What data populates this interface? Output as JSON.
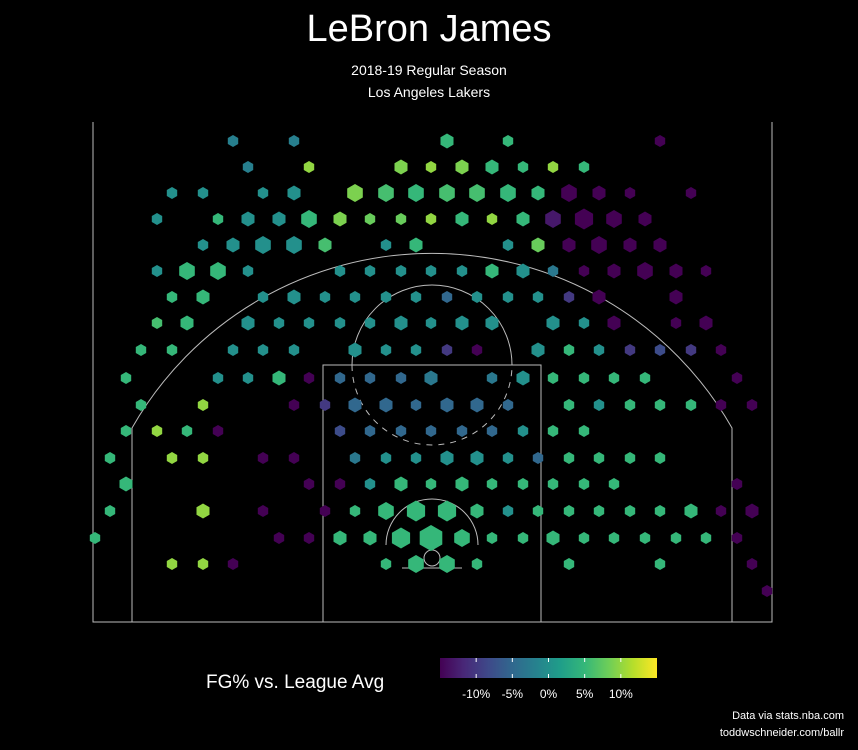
{
  "header": {
    "title": "LeBron James",
    "subtitle_line1": "2018-19 Regular Season",
    "subtitle_line2": "Los Angeles Lakers"
  },
  "footer": {
    "credit_line1": "Data via stats.nba.com",
    "credit_line2": "toddwschneider.com/ballr"
  },
  "chart_data": {
    "type": "hexbin",
    "legend": {
      "title": "FG% vs. League Avg",
      "ticks": [
        "-10%",
        "-5%",
        "0%",
        "5%",
        "10%"
      ],
      "tick_values": [
        -10,
        -5,
        0,
        5,
        10
      ],
      "range": [
        -15,
        15
      ],
      "colormap": "viridis",
      "placement": "bottom"
    },
    "colors": {
      "background": "#000000",
      "court_lines": "#bbbbbb",
      "viridis": [
        "#440154",
        "#482878",
        "#3e4989",
        "#31688e",
        "#26828e",
        "#1f9e89",
        "#35b779",
        "#6ece58",
        "#b5de2b",
        "#fde725"
      ]
    },
    "hexes": [
      [
        233,
        141,
        2,
        -2
      ],
      [
        294,
        141,
        2,
        -2
      ],
      [
        447,
        141,
        3,
        5
      ],
      [
        508,
        141,
        2,
        5
      ],
      [
        660,
        141,
        2,
        -15
      ],
      [
        248,
        167,
        2,
        -2
      ],
      [
        309,
        167,
        2,
        10
      ],
      [
        401,
        167,
        3,
        9
      ],
      [
        431,
        167,
        2,
        10
      ],
      [
        462,
        167,
        3,
        9
      ],
      [
        492,
        167,
        3,
        5
      ],
      [
        523,
        167,
        2,
        5
      ],
      [
        553,
        167,
        2,
        10
      ],
      [
        584,
        167,
        2,
        5
      ],
      [
        172,
        193,
        2,
        0
      ],
      [
        203,
        193,
        2,
        0
      ],
      [
        263,
        193,
        2,
        0
      ],
      [
        294,
        193,
        3,
        0
      ],
      [
        355,
        193,
        4,
        9
      ],
      [
        386,
        193,
        4,
        6
      ],
      [
        416,
        193,
        4,
        5
      ],
      [
        447,
        193,
        4,
        6
      ],
      [
        477,
        193,
        4,
        6
      ],
      [
        508,
        193,
        4,
        5
      ],
      [
        538,
        193,
        3,
        5
      ],
      [
        569,
        193,
        4,
        -15
      ],
      [
        599,
        193,
        3,
        -15
      ],
      [
        630,
        193,
        2,
        -15
      ],
      [
        691,
        193,
        2,
        -15
      ],
      [
        157,
        219,
        2,
        0
      ],
      [
        218,
        219,
        2,
        5
      ],
      [
        248,
        219,
        3,
        0
      ],
      [
        279,
        219,
        3,
        0
      ],
      [
        309,
        219,
        4,
        5
      ],
      [
        340,
        219,
        3,
        9
      ],
      [
        370,
        219,
        2,
        8
      ],
      [
        401,
        219,
        2,
        8
      ],
      [
        431,
        219,
        2,
        10
      ],
      [
        462,
        219,
        3,
        5
      ],
      [
        492,
        219,
        2,
        10
      ],
      [
        523,
        219,
        3,
        5
      ],
      [
        553,
        219,
        4,
        -13
      ],
      [
        584,
        219,
        5,
        -15
      ],
      [
        614,
        219,
        4,
        -15
      ],
      [
        645,
        219,
        3,
        -15
      ],
      [
        203,
        245,
        2,
        0
      ],
      [
        233,
        245,
        3,
        0
      ],
      [
        263,
        245,
        4,
        0
      ],
      [
        294,
        245,
        4,
        0
      ],
      [
        325,
        245,
        3,
        6
      ],
      [
        386,
        245,
        2,
        0
      ],
      [
        416,
        245,
        3,
        5
      ],
      [
        508,
        245,
        2,
        0
      ],
      [
        538,
        245,
        3,
        8
      ],
      [
        569,
        245,
        3,
        -15
      ],
      [
        599,
        245,
        4,
        -15
      ],
      [
        630,
        245,
        3,
        -15
      ],
      [
        660,
        245,
        3,
        -15
      ],
      [
        157,
        271,
        2,
        0
      ],
      [
        187,
        271,
        4,
        5
      ],
      [
        218,
        271,
        4,
        5
      ],
      [
        248,
        271,
        2,
        0
      ],
      [
        340,
        271,
        2,
        0
      ],
      [
        370,
        271,
        2,
        0
      ],
      [
        401,
        271,
        2,
        0
      ],
      [
        431,
        271,
        2,
        0
      ],
      [
        462,
        271,
        2,
        0
      ],
      [
        492,
        271,
        3,
        5
      ],
      [
        523,
        271,
        3,
        0
      ],
      [
        553,
        271,
        2,
        -3
      ],
      [
        584,
        271,
        2,
        -15
      ],
      [
        614,
        271,
        3,
        -15
      ],
      [
        645,
        271,
        4,
        -15
      ],
      [
        676,
        271,
        3,
        -15
      ],
      [
        706,
        271,
        2,
        -15
      ],
      [
        172,
        297,
        2,
        5
      ],
      [
        203,
        297,
        3,
        5
      ],
      [
        263,
        297,
        2,
        0
      ],
      [
        294,
        297,
        3,
        0
      ],
      [
        325,
        297,
        2,
        0
      ],
      [
        355,
        297,
        2,
        0
      ],
      [
        386,
        297,
        2,
        0
      ],
      [
        416,
        297,
        2,
        0
      ],
      [
        447,
        297,
        2,
        -5
      ],
      [
        477,
        297,
        2,
        0
      ],
      [
        508,
        297,
        2,
        0
      ],
      [
        538,
        297,
        2,
        0
      ],
      [
        569,
        297,
        2,
        -10
      ],
      [
        599,
        297,
        3,
        -15
      ],
      [
        676,
        297,
        3,
        -15
      ],
      [
        157,
        323,
        2,
        6
      ],
      [
        187,
        323,
        3,
        5
      ],
      [
        248,
        323,
        3,
        0
      ],
      [
        279,
        323,
        2,
        0
      ],
      [
        309,
        323,
        2,
        0
      ],
      [
        340,
        323,
        2,
        0
      ],
      [
        370,
        323,
        2,
        0
      ],
      [
        401,
        323,
        3,
        0
      ],
      [
        431,
        323,
        2,
        0
      ],
      [
        462,
        323,
        3,
        0
      ],
      [
        492,
        323,
        3,
        0
      ],
      [
        553,
        323,
        3,
        0
      ],
      [
        584,
        323,
        2,
        0
      ],
      [
        614,
        323,
        3,
        -15
      ],
      [
        676,
        323,
        2,
        -15
      ],
      [
        706,
        323,
        3,
        -15
      ],
      [
        141,
        350,
        2,
        5
      ],
      [
        172,
        350,
        2,
        5
      ],
      [
        233,
        350,
        2,
        0
      ],
      [
        263,
        350,
        2,
        0
      ],
      [
        294,
        350,
        2,
        0
      ],
      [
        355,
        350,
        3,
        0
      ],
      [
        386,
        350,
        2,
        0
      ],
      [
        416,
        350,
        2,
        0
      ],
      [
        447,
        350,
        2,
        -10
      ],
      [
        477,
        350,
        2,
        -15
      ],
      [
        538,
        350,
        3,
        0
      ],
      [
        569,
        350,
        2,
        5
      ],
      [
        599,
        350,
        2,
        0
      ],
      [
        630,
        350,
        2,
        -10
      ],
      [
        660,
        350,
        2,
        -8
      ],
      [
        691,
        350,
        2,
        -10
      ],
      [
        721,
        350,
        2,
        -15
      ],
      [
        126,
        378,
        2,
        5
      ],
      [
        218,
        378,
        2,
        0
      ],
      [
        248,
        378,
        2,
        0
      ],
      [
        279,
        378,
        3,
        5
      ],
      [
        309,
        378,
        2,
        -15
      ],
      [
        340,
        378,
        2,
        -5
      ],
      [
        370,
        378,
        2,
        -5
      ],
      [
        401,
        378,
        2,
        -5
      ],
      [
        431,
        378,
        3,
        -3
      ],
      [
        492,
        378,
        2,
        -3
      ],
      [
        523,
        378,
        3,
        0
      ],
      [
        553,
        378,
        2,
        5
      ],
      [
        584,
        378,
        2,
        5
      ],
      [
        614,
        378,
        2,
        5
      ],
      [
        645,
        378,
        2,
        5
      ],
      [
        737,
        378,
        2,
        -15
      ],
      [
        141,
        405,
        2,
        5
      ],
      [
        203,
        405,
        2,
        10
      ],
      [
        294,
        405,
        2,
        -15
      ],
      [
        325,
        405,
        2,
        -10
      ],
      [
        355,
        405,
        3,
        -5
      ],
      [
        386,
        405,
        3,
        -5
      ],
      [
        416,
        405,
        2,
        -5
      ],
      [
        447,
        405,
        3,
        -5
      ],
      [
        477,
        405,
        3,
        -5
      ],
      [
        508,
        405,
        2,
        -5
      ],
      [
        569,
        405,
        2,
        5
      ],
      [
        599,
        405,
        2,
        0
      ],
      [
        630,
        405,
        2,
        5
      ],
      [
        660,
        405,
        2,
        5
      ],
      [
        691,
        405,
        2,
        5
      ],
      [
        721,
        405,
        2,
        -15
      ],
      [
        752,
        405,
        2,
        -15
      ],
      [
        126,
        431,
        2,
        5
      ],
      [
        157,
        431,
        2,
        10
      ],
      [
        187,
        431,
        2,
        5
      ],
      [
        218,
        431,
        2,
        -15
      ],
      [
        340,
        431,
        2,
        -8
      ],
      [
        370,
        431,
        2,
        -5
      ],
      [
        401,
        431,
        2,
        -5
      ],
      [
        431,
        431,
        2,
        -5
      ],
      [
        462,
        431,
        2,
        -5
      ],
      [
        492,
        431,
        2,
        -5
      ],
      [
        523,
        431,
        2,
        0
      ],
      [
        553,
        431,
        2,
        5
      ],
      [
        584,
        431,
        2,
        5
      ],
      [
        110,
        458,
        2,
        5
      ],
      [
        172,
        458,
        2,
        10
      ],
      [
        203,
        458,
        2,
        10
      ],
      [
        263,
        458,
        2,
        -15
      ],
      [
        294,
        458,
        2,
        -15
      ],
      [
        355,
        458,
        2,
        -3
      ],
      [
        386,
        458,
        2,
        0
      ],
      [
        416,
        458,
        2,
        0
      ],
      [
        447,
        458,
        3,
        0
      ],
      [
        477,
        458,
        3,
        0
      ],
      [
        508,
        458,
        2,
        0
      ],
      [
        538,
        458,
        2,
        -5
      ],
      [
        569,
        458,
        2,
        5
      ],
      [
        599,
        458,
        2,
        5
      ],
      [
        630,
        458,
        2,
        5
      ],
      [
        660,
        458,
        2,
        5
      ],
      [
        126,
        484,
        3,
        5
      ],
      [
        309,
        484,
        2,
        -15
      ],
      [
        340,
        484,
        2,
        -15
      ],
      [
        370,
        484,
        2,
        0
      ],
      [
        401,
        484,
        3,
        5
      ],
      [
        431,
        484,
        2,
        5
      ],
      [
        462,
        484,
        3,
        5
      ],
      [
        492,
        484,
        2,
        5
      ],
      [
        523,
        484,
        2,
        5
      ],
      [
        553,
        484,
        2,
        5
      ],
      [
        584,
        484,
        2,
        5
      ],
      [
        614,
        484,
        2,
        5
      ],
      [
        737,
        484,
        2,
        -15
      ],
      [
        110,
        511,
        2,
        5
      ],
      [
        203,
        511,
        3,
        10
      ],
      [
        263,
        511,
        2,
        -15
      ],
      [
        325,
        511,
        2,
        -15
      ],
      [
        355,
        511,
        2,
        5
      ],
      [
        386,
        511,
        4,
        5
      ],
      [
        416,
        511,
        5,
        5
      ],
      [
        447,
        511,
        5,
        5
      ],
      [
        477,
        511,
        3,
        5
      ],
      [
        508,
        511,
        2,
        0
      ],
      [
        538,
        511,
        2,
        5
      ],
      [
        569,
        511,
        2,
        5
      ],
      [
        599,
        511,
        2,
        5
      ],
      [
        630,
        511,
        2,
        5
      ],
      [
        660,
        511,
        2,
        5
      ],
      [
        691,
        511,
        3,
        5
      ],
      [
        721,
        511,
        2,
        -15
      ],
      [
        752,
        511,
        3,
        -15
      ],
      [
        95,
        538,
        2,
        5
      ],
      [
        279,
        538,
        2,
        -15
      ],
      [
        309,
        538,
        2,
        -15
      ],
      [
        340,
        538,
        3,
        5
      ],
      [
        370,
        538,
        3,
        5
      ],
      [
        401,
        538,
        5,
        5
      ],
      [
        431,
        538,
        6,
        5
      ],
      [
        462,
        538,
        4,
        5
      ],
      [
        492,
        538,
        2,
        5
      ],
      [
        523,
        538,
        2,
        5
      ],
      [
        553,
        538,
        3,
        5
      ],
      [
        584,
        538,
        2,
        5
      ],
      [
        614,
        538,
        2,
        5
      ],
      [
        645,
        538,
        2,
        5
      ],
      [
        676,
        538,
        2,
        5
      ],
      [
        706,
        538,
        2,
        5
      ],
      [
        737,
        538,
        2,
        -15
      ],
      [
        172,
        564,
        2,
        10
      ],
      [
        203,
        564,
        2,
        10
      ],
      [
        233,
        564,
        2,
        -15
      ],
      [
        386,
        564,
        2,
        5
      ],
      [
        416,
        564,
        4,
        5
      ],
      [
        447,
        564,
        4,
        5
      ],
      [
        477,
        564,
        2,
        5
      ],
      [
        569,
        564,
        2,
        5
      ],
      [
        660,
        564,
        2,
        5
      ],
      [
        752,
        564,
        2,
        -15
      ],
      [
        767,
        591,
        2,
        -15
      ]
    ]
  }
}
